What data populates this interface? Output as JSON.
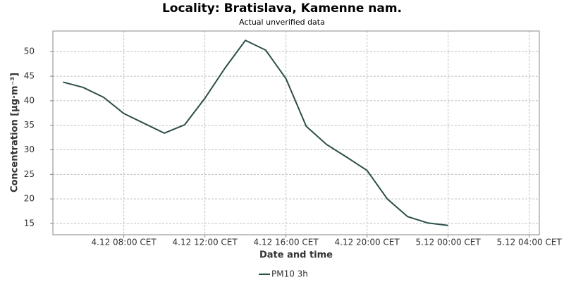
{
  "chart_data": {
    "type": "line",
    "title": "Locality: Bratislava, Kamenne nam.",
    "subtitle": "Actual unverified data",
    "x_label": "Date and time",
    "y_label": "Concentration [µg·m⁻³]",
    "x": [
      5,
      6,
      7,
      8,
      9,
      10,
      11,
      12,
      13,
      14,
      15,
      16,
      17,
      18,
      19,
      20,
      21,
      22,
      23,
      24
    ],
    "series": [
      {
        "name": "PM10 3h",
        "color": "#2d4f4a",
        "values": [
          43.8,
          42.7,
          40.7,
          37.4,
          35.4,
          33.4,
          35.1,
          40.5,
          46.7,
          52.3,
          50.3,
          44.5,
          34.8,
          31.1,
          28.5,
          25.8,
          20.0,
          16.4,
          15.1,
          14.6
        ]
      }
    ],
    "xlim": [
      4.5,
      28.5
    ],
    "xticks": [
      {
        "value": 8,
        "label": "4.12 08:00 CET"
      },
      {
        "value": 12,
        "label": "4.12 12:00 CET"
      },
      {
        "value": 16,
        "label": "4.12 16:00 CET"
      },
      {
        "value": 20,
        "label": "4.12 20:00 CET"
      },
      {
        "value": 24,
        "label": "5.12 00:00 CET"
      },
      {
        "value": 28,
        "label": "5.12 04:00 CET"
      }
    ],
    "ylim": [
      12.7,
      54.2
    ],
    "yticks": [
      15,
      20,
      25,
      30,
      35,
      40,
      45,
      50
    ],
    "grid": true,
    "legend": "bottom"
  }
}
